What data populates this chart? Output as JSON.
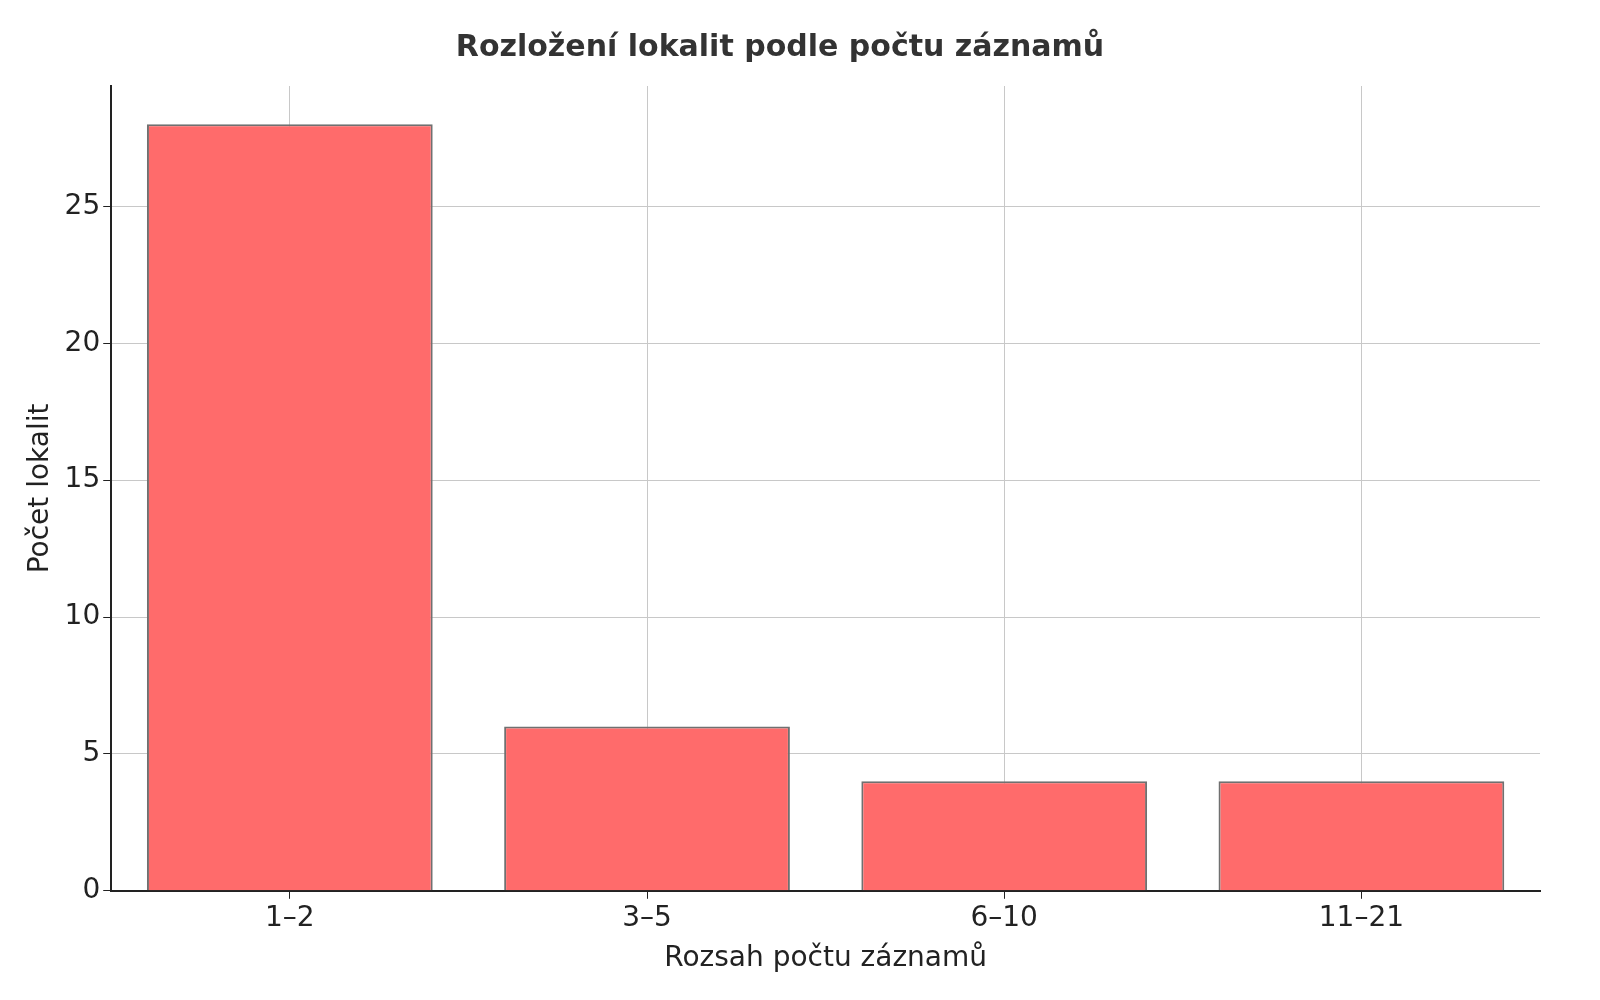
{
  "chart_data": {
    "type": "bar",
    "title": "Rozložení lokalit podle počtu záznamů",
    "xlabel": "Rozsah počtu záznamů",
    "ylabel": "Počet lokalit",
    "categories": [
      "1–2",
      "3–5",
      "6–10",
      "11–21"
    ],
    "values": [
      28,
      6,
      4,
      4
    ],
    "color": "#ff6b6b",
    "ylim": [
      0,
      29.4
    ],
    "yticks": [
      0,
      5,
      10,
      15,
      20,
      25
    ],
    "grid": true,
    "legend": false
  }
}
